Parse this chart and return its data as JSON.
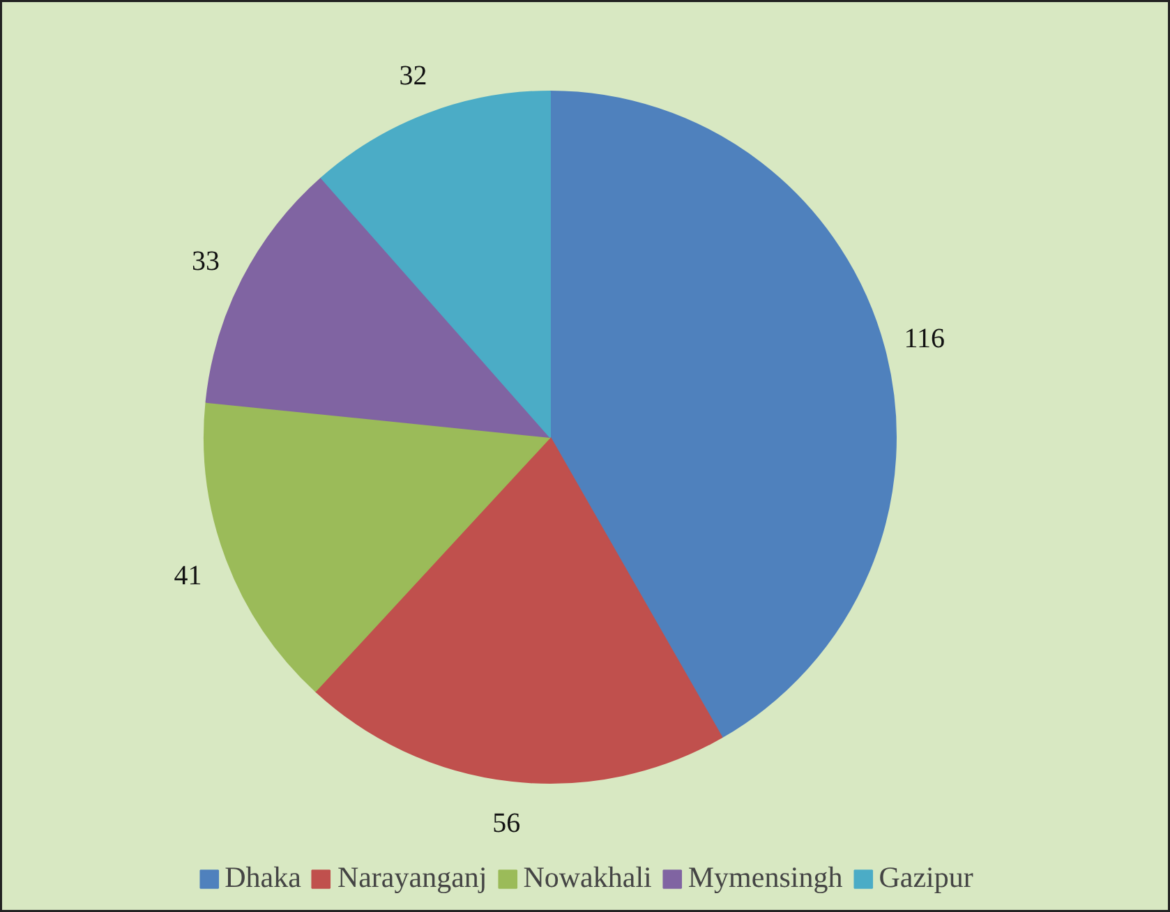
{
  "chart_data": {
    "type": "pie",
    "categories": [
      "Dhaka",
      "Narayanganj",
      "Nowakhali",
      "Mymensingh",
      "Gazipur"
    ],
    "values": [
      116,
      56,
      41,
      33,
      32
    ],
    "colors": [
      "#4f81bd",
      "#c0504d",
      "#9bbb59",
      "#8064a2",
      "#4bacc6"
    ],
    "data_labels": true,
    "legend": "bottom"
  }
}
